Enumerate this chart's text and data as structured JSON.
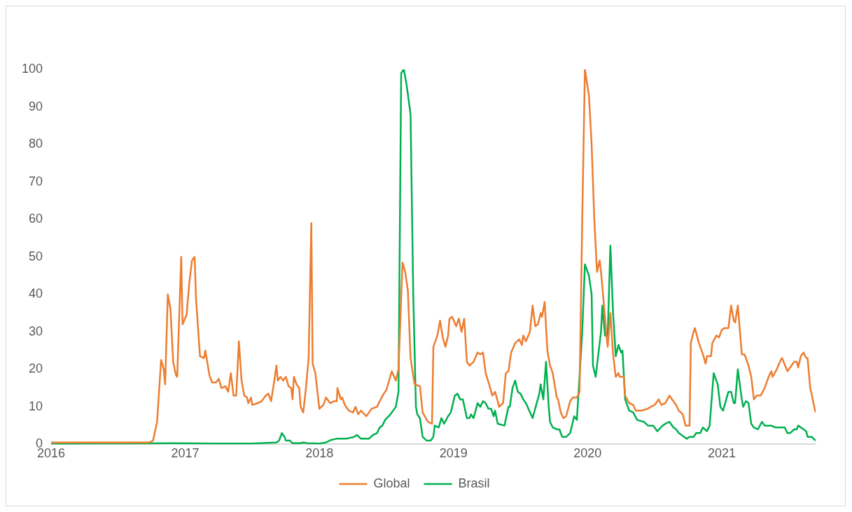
{
  "chart_data": {
    "type": "line",
    "xlim": [
      2016,
      2021.7
    ],
    "xticks": [
      2016,
      2017,
      2018,
      2019,
      2020,
      2021
    ],
    "ylim": [
      0,
      100
    ],
    "yticks": [
      0,
      10,
      20,
      30,
      40,
      50,
      60,
      70,
      80,
      90,
      100
    ],
    "grid": false,
    "legend": "bottom",
    "marker": "none",
    "line_style": "solid",
    "series": [
      {
        "name": "Global",
        "color": "#ed7d31",
        "x": [
          2016,
          2016.2,
          2016.4,
          2016.6,
          2016.73,
          2016.76,
          2016.79,
          2016.82,
          2016.84,
          2016.85,
          2016.87,
          2016.89,
          2016.91,
          2016.93,
          2016.94,
          2016.97,
          2016.98,
          2017.01,
          2017.03,
          2017.05,
          2017.07,
          2017.08,
          2017.11,
          2017.14,
          2017.15,
          2017.18,
          2017.2,
          2017.23,
          2017.25,
          2017.27,
          2017.3,
          2017.32,
          2017.34,
          2017.36,
          2017.38,
          2017.4,
          2017.42,
          2017.44,
          2017.46,
          2017.47,
          2017.49,
          2017.5,
          2017.54,
          2017.57,
          2017.6,
          2017.62,
          2017.64,
          2017.66,
          2017.68,
          2017.69,
          2017.71,
          2017.73,
          2017.75,
          2017.77,
          2017.79,
          2017.8,
          2017.81,
          2017.83,
          2017.85,
          2017.86,
          2017.88,
          2017.9,
          2017.92,
          2017.94,
          2017.95,
          2017.97,
          2018,
          2018.03,
          2018.05,
          2018.08,
          2018.11,
          2018.13,
          2018.135,
          2018.16,
          2018.17,
          2018.19,
          2018.22,
          2018.25,
          2018.27,
          2018.29,
          2018.31,
          2018.35,
          2018.37,
          2018.39,
          2018.43,
          2018.45,
          2018.48,
          2018.5,
          2018.54,
          2018.57,
          2018.59,
          2018.62,
          2018.64,
          2018.66,
          2018.68,
          2018.71,
          2018.75,
          2018.77,
          2018.81,
          2018.84,
          2018.85,
          2018.88,
          2018.9,
          2018.92,
          2018.94,
          2018.96,
          2018.97,
          2018.99,
          2019.02,
          2019.04,
          2019.06,
          2019.08,
          2019.1,
          2019.12,
          2019.15,
          2019.18,
          2019.2,
          2019.22,
          2019.24,
          2019.27,
          2019.29,
          2019.31,
          2019.33,
          2019.34,
          2019.37,
          2019.39,
          2019.41,
          2019.43,
          2019.46,
          2019.49,
          2019.51,
          2019.52,
          2019.54,
          2019.57,
          2019.59,
          2019.61,
          2019.63,
          2019.65,
          2019.66,
          2019.68,
          2019.7,
          2019.72,
          2019.74,
          2019.77,
          2019.78,
          2019.8,
          2019.82,
          2019.84,
          2019.87,
          2019.89,
          2019.92,
          2019.94,
          2019.96,
          2019.98,
          2020.01,
          2020.03,
          2020.05,
          2020.07,
          2020.09,
          2020.1,
          2020.12,
          2020.14,
          2020.15,
          2020.17,
          2020.19,
          2020.21,
          2020.23,
          2020.24,
          2020.27,
          2020.28,
          2020.31,
          2020.34,
          2020.36,
          2020.4,
          2020.45,
          2020.47,
          2020.5,
          2020.53,
          2020.55,
          2020.58,
          2020.61,
          2020.63,
          2020.66,
          2020.68,
          2020.71,
          2020.73,
          2020.76,
          2020.77,
          2020.79,
          2020.8,
          2020.83,
          2020.86,
          2020.88,
          2020.89,
          2020.92,
          2020.93,
          2020.96,
          2020.98,
          2021,
          2021.02,
          2021.05,
          2021.07,
          2021.09,
          2021.1,
          2021.12,
          2021.15,
          2021.17,
          2021.2,
          2021.22,
          2021.24,
          2021.26,
          2021.29,
          2021.32,
          2021.35,
          2021.37,
          2021.38,
          2021.41,
          2021.44,
          2021.45,
          2021.49,
          2021.52,
          2021.54,
          2021.56,
          2021.57,
          2021.59,
          2021.61,
          2021.63,
          2021.64,
          2021.66,
          2021.67,
          2021.69,
          2021.7
        ],
        "values": [
          0.5,
          0.5,
          0.5,
          0.5,
          0.5,
          1,
          6,
          22.5,
          20,
          16,
          40,
          36,
          22,
          18.5,
          18,
          50,
          32,
          34.5,
          43,
          49,
          50,
          39,
          23.5,
          23,
          25,
          18.5,
          16.5,
          16.5,
          17.5,
          15,
          15.5,
          14,
          19,
          13,
          13,
          27.5,
          17,
          13,
          12.5,
          11,
          12.5,
          10.5,
          11,
          11.5,
          13,
          13.5,
          11.5,
          16,
          21,
          17,
          18,
          17,
          18,
          15.5,
          15,
          12,
          18,
          16,
          15,
          10,
          8.5,
          15,
          23,
          59,
          21.5,
          19,
          9.5,
          10.5,
          12.5,
          11,
          11.5,
          11.5,
          15,
          12,
          12.5,
          10.5,
          9,
          8.5,
          10,
          8,
          9,
          7.5,
          8.5,
          9.5,
          10,
          11.5,
          13.5,
          14.5,
          19.5,
          17,
          20,
          48.5,
          46,
          41,
          23,
          16,
          15.5,
          8.5,
          6,
          5.5,
          26,
          29,
          33,
          28.5,
          26,
          29,
          33.5,
          34,
          31.5,
          33.5,
          30,
          33.5,
          22,
          21,
          22,
          24.5,
          24,
          24.5,
          19,
          15.5,
          13,
          14,
          11.5,
          10,
          11,
          19,
          19.5,
          24.5,
          27,
          28,
          26.5,
          29,
          27.5,
          30,
          37,
          31.5,
          32,
          35,
          34,
          38,
          25,
          21,
          19,
          12.5,
          12,
          8.5,
          7,
          7.5,
          11.5,
          12.5,
          12.5,
          14,
          60,
          100,
          93,
          80,
          60,
          46,
          49,
          46,
          38,
          29,
          26,
          35,
          24,
          18,
          19,
          18,
          18,
          13,
          11,
          10.5,
          9,
          9,
          9.5,
          10,
          10.5,
          12,
          10.5,
          11,
          13,
          12,
          10.5,
          9,
          8,
          5,
          5,
          27,
          30,
          31,
          27,
          24,
          21.5,
          23.5,
          23.5,
          27,
          29,
          28.5,
          30.5,
          31,
          31,
          37,
          33,
          32.5,
          37,
          24,
          24,
          21,
          18,
          12,
          13,
          13,
          15,
          18,
          19.5,
          18,
          20,
          22.5,
          23,
          19.5,
          21,
          22,
          22,
          20.5,
          23.5,
          24.5,
          23,
          23,
          15,
          13.5,
          10,
          8.5
        ]
      },
      {
        "name": "Brasil",
        "color": "#00b050",
        "x": [
          2016,
          2016.3,
          2016.6,
          2016.9,
          2017.2,
          2017.5,
          2017.68,
          2017.7,
          2017.72,
          2017.74,
          2017.75,
          2017.78,
          2017.8,
          2017.86,
          2017.88,
          2017.91,
          2018,
          2018.05,
          2018.09,
          2018.13,
          2018.2,
          2018.26,
          2018.28,
          2018.31,
          2018.35,
          2018.37,
          2018.4,
          2018.43,
          2018.45,
          2018.47,
          2018.49,
          2018.53,
          2018.57,
          2018.59,
          2018.61,
          2018.63,
          2018.65,
          2018.68,
          2018.7,
          2018.72,
          2018.73,
          2018.75,
          2018.77,
          2018.8,
          2018.83,
          2018.85,
          2018.86,
          2018.89,
          2018.91,
          2018.93,
          2018.96,
          2018.98,
          2019.01,
          2019.03,
          2019.05,
          2019.07,
          2019.1,
          2019.12,
          2019.13,
          2019.15,
          2019.18,
          2019.2,
          2019.22,
          2019.24,
          2019.26,
          2019.28,
          2019.3,
          2019.31,
          2019.33,
          2019.38,
          2019.41,
          2019.42,
          2019.44,
          2019.46,
          2019.48,
          2019.5,
          2019.52,
          2019.54,
          2019.59,
          2019.64,
          2019.65,
          2019.67,
          2019.69,
          2019.71,
          2019.72,
          2019.74,
          2019.77,
          2019.79,
          2019.81,
          2019.84,
          2019.87,
          2019.9,
          2019.92,
          2019.96,
          2019.98,
          2020.01,
          2020.03,
          2020.04,
          2020.06,
          2020.1,
          2020.11,
          2020.13,
          2020.15,
          2020.17,
          2020.19,
          2020.21,
          2020.23,
          2020.25,
          2020.26,
          2020.28,
          2020.31,
          2020.34,
          2020.37,
          2020.42,
          2020.45,
          2020.49,
          2020.52,
          2020.56,
          2020.58,
          2020.61,
          2020.64,
          2020.66,
          2020.68,
          2020.7,
          2020.74,
          2020.76,
          2020.79,
          2020.81,
          2020.84,
          2020.86,
          2020.89,
          2020.91,
          2020.94,
          2020.97,
          2020.99,
          2021.01,
          2021.05,
          2021.07,
          2021.09,
          2021.1,
          2021.12,
          2021.15,
          2021.16,
          2021.18,
          2021.2,
          2021.22,
          2021.24,
          2021.27,
          2021.3,
          2021.32,
          2021.37,
          2021.4,
          2021.42,
          2021.47,
          2021.49,
          2021.51,
          2021.54,
          2021.56,
          2021.57,
          2021.61,
          2021.63,
          2021.64,
          2021.67,
          2021.7
        ],
        "values": [
          0,
          0.2,
          0.2,
          0.3,
          0.2,
          0.2,
          0.5,
          1,
          3,
          2,
          1,
          1,
          0.3,
          0.3,
          0.5,
          0.3,
          0.2,
          0.5,
          1.2,
          1.5,
          1.5,
          2,
          2.5,
          1.5,
          1.5,
          1.5,
          2.5,
          3,
          4.5,
          5,
          6.5,
          8,
          10,
          14,
          99,
          100,
          96,
          88,
          40,
          10,
          8,
          7,
          2,
          1,
          1,
          2,
          5,
          4.5,
          7,
          5.5,
          7.5,
          8.5,
          13,
          13.5,
          12,
          12,
          7,
          7,
          8,
          7,
          11,
          10,
          11.5,
          11,
          9.5,
          9.5,
          7.5,
          9,
          5.5,
          5,
          10,
          10,
          15,
          17,
          14,
          13.5,
          12,
          11,
          7,
          13.5,
          16,
          12,
          22,
          10,
          6,
          4.5,
          4,
          4,
          2,
          2,
          3,
          7.5,
          6.5,
          30,
          48,
          45,
          40,
          21,
          18,
          30,
          37,
          29,
          29,
          53,
          35,
          23.5,
          26.5,
          24.5,
          25,
          12,
          9,
          8.5,
          6.5,
          6,
          5,
          5,
          3.5,
          5,
          5.5,
          6,
          4.5,
          4,
          3,
          2.5,
          1.5,
          2,
          2,
          3,
          3,
          4.5,
          3.5,
          5,
          19,
          16,
          10,
          9,
          14,
          14,
          11,
          11,
          20,
          12,
          10,
          11.5,
          11,
          5.5,
          4.5,
          4,
          6,
          5,
          5,
          4.5,
          4.5,
          4.5,
          3,
          3,
          4,
          4,
          5,
          4,
          3.5,
          2,
          2,
          1
        ]
      }
    ]
  }
}
